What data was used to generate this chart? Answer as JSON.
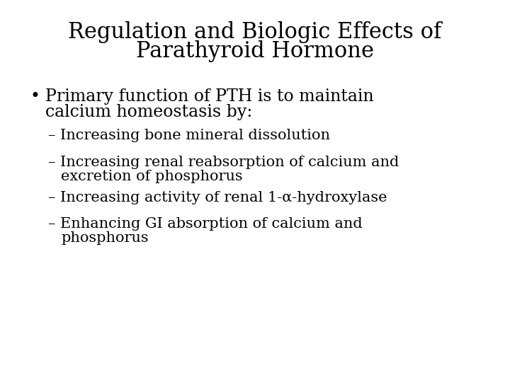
{
  "background_color": "#ffffff",
  "title_line1": "Regulation and Biologic Effects of",
  "title_line2": "Parathyroid Hormone",
  "title_fontsize": 22,
  "bullet_text_line1": "Primary function of PTH is to maintain",
  "bullet_text_line2": "calcium homeostasis by:",
  "bullet_fontsize": 17,
  "sub_items": [
    "– Increasing bone mineral dissolution",
    "– Increasing renal reabsorption of calcium and\n    excretion of phosphorus",
    "– Increasing activity of renal 1-α-hydroxylase",
    "– Enhancing GI absorption of calcium and\n    phosphorus"
  ],
  "sub_fontsize": 15,
  "text_color": "#000000",
  "font_family": "DejaVu Serif"
}
